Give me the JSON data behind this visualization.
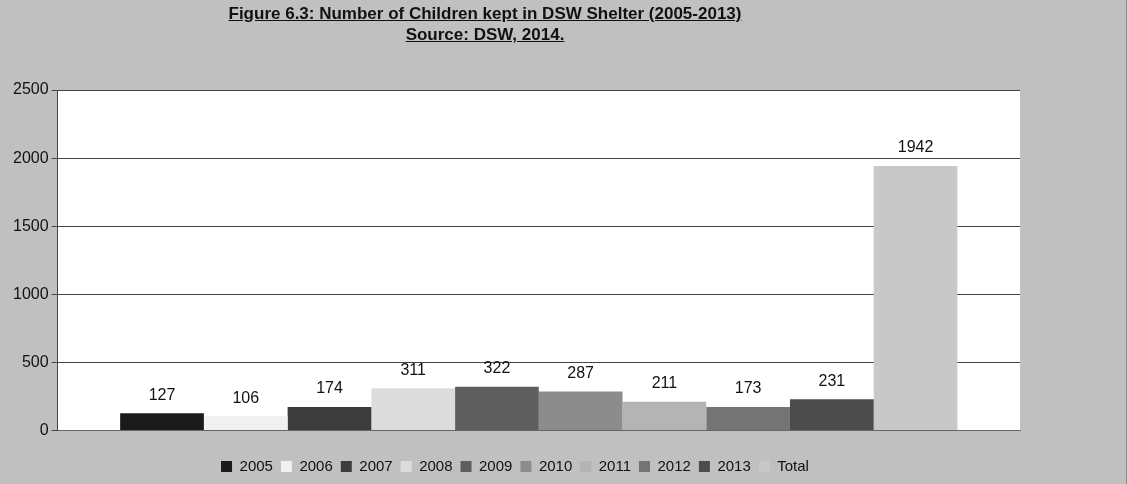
{
  "chart_data": {
    "type": "bar",
    "title": "Figure 6.3: Number of Children kept in DSW Shelter (2005-2013)",
    "subtitle": "Source: DSW, 2014.",
    "categories": [
      null
    ],
    "series": [
      {
        "name": "2005",
        "color": "#1a1a1a",
        "values": [
          127
        ]
      },
      {
        "name": "2006",
        "color": "#f0f0f0",
        "values": [
          106
        ]
      },
      {
        "name": "2007",
        "color": "#3c3c3c",
        "values": [
          174
        ]
      },
      {
        "name": "2008",
        "color": "#dcdcdc",
        "values": [
          311
        ]
      },
      {
        "name": "2009",
        "color": "#5e5e5e",
        "values": [
          322
        ]
      },
      {
        "name": "2010",
        "color": "#8c8c8c",
        "values": [
          287
        ]
      },
      {
        "name": "2011",
        "color": "#b4b4b4",
        "values": [
          211
        ]
      },
      {
        "name": "2012",
        "color": "#747474",
        "values": [
          173
        ]
      },
      {
        "name": "2013",
        "color": "#4c4c4c",
        "values": [
          231
        ]
      },
      {
        "name": "Total",
        "color": "#c8c8c8",
        "values": [
          1942
        ]
      }
    ],
    "ylim": [
      0,
      2500
    ],
    "yticks": [
      0,
      500,
      1000,
      1500,
      2000,
      2500
    ],
    "grid": "y",
    "legend": "bottom",
    "data_labels": true
  }
}
